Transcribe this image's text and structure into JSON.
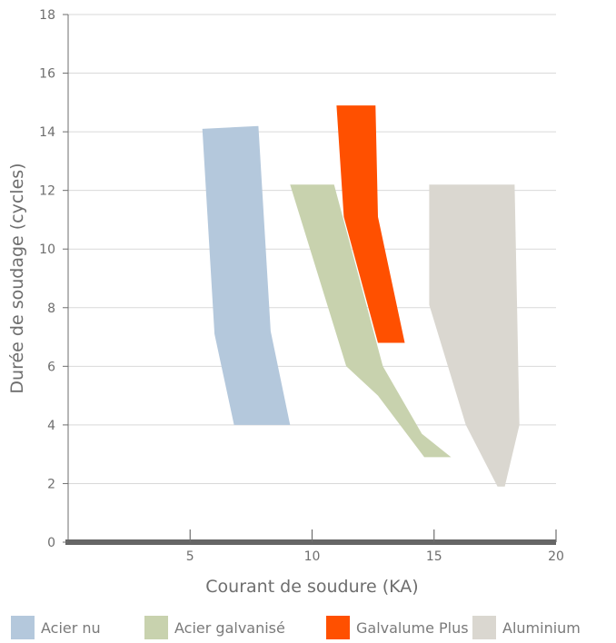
{
  "chart_data": {
    "type": "area",
    "title": "",
    "xlabel": "Courant de soudure (KA)",
    "ylabel": "Durée de soudage (cycles)",
    "xlim": [
      0,
      20
    ],
    "ylim": [
      0,
      18
    ],
    "xticks": [
      5,
      10,
      15,
      20
    ],
    "yticks": [
      0,
      2,
      4,
      6,
      8,
      10,
      12,
      14,
      16,
      18
    ],
    "grid": "horizontal",
    "legend_position": "bottom",
    "series": [
      {
        "name": "Acier nu",
        "color": "#b4c8dc",
        "polygon": [
          [
            5.5,
            14.1
          ],
          [
            7.8,
            14.2
          ],
          [
            8.3,
            7.2
          ],
          [
            9.1,
            4.0
          ],
          [
            6.8,
            4.0
          ],
          [
            6.0,
            7.1
          ]
        ]
      },
      {
        "name": "Acier galvanisé",
        "color": "#c8d2ae",
        "polygon": [
          [
            9.1,
            12.2
          ],
          [
            10.9,
            12.2
          ],
          [
            12.9,
            6.0
          ],
          [
            14.5,
            3.7
          ],
          [
            15.7,
            2.9
          ],
          [
            14.6,
            2.9
          ],
          [
            12.7,
            5.0
          ],
          [
            11.4,
            6.0
          ]
        ]
      },
      {
        "name": "Galvalume Plus",
        "color": "#ff5000",
        "polygon": [
          [
            11.0,
            14.9
          ],
          [
            12.6,
            14.9
          ],
          [
            12.7,
            11.1
          ],
          [
            13.8,
            6.8
          ],
          [
            12.7,
            6.8
          ],
          [
            11.3,
            11.1
          ]
        ]
      },
      {
        "name": "Aluminium",
        "color": "#dad7d0",
        "polygon": [
          [
            14.8,
            12.2
          ],
          [
            18.3,
            12.2
          ],
          [
            18.5,
            4.0
          ],
          [
            17.9,
            1.9
          ],
          [
            17.6,
            1.9
          ],
          [
            16.3,
            4.0
          ],
          [
            14.8,
            8.1
          ]
        ]
      }
    ]
  },
  "legend": {
    "items": [
      {
        "label": "Acier nu",
        "color": "#b4c8dc"
      },
      {
        "label": "Acier galvanisé",
        "color": "#c8d2ae"
      },
      {
        "label": "Galvalume Plus",
        "color": "#ff5000"
      },
      {
        "label": "Aluminium",
        "color": "#dad7d0"
      }
    ]
  }
}
